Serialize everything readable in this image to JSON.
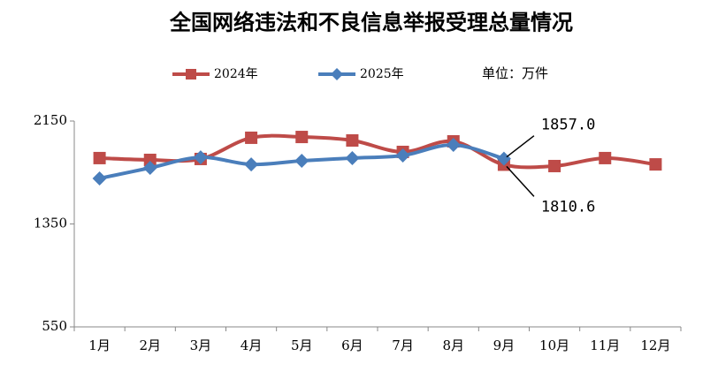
{
  "chart_data": {
    "type": "line",
    "title": "全国网络违法和不良信息举报受理总量情况",
    "unit_label": "单位：万件",
    "categories": [
      "1月",
      "2月",
      "3月",
      "4月",
      "5月",
      "6月",
      "7月",
      "8月",
      "9月",
      "10月",
      "11月",
      "12月"
    ],
    "series": [
      {
        "name": "2024年",
        "color": "#be4b48",
        "marker": "square",
        "values": [
          1862,
          1848,
          1855,
          2020,
          2026,
          1999,
          1910,
          1992,
          1810.6,
          1800,
          1862,
          1813
        ],
        "value_labels": [
          null,
          null,
          null,
          null,
          null,
          null,
          null,
          null,
          "1810.6",
          null,
          null,
          null
        ]
      },
      {
        "name": "2025年",
        "color": "#4a7ebb",
        "marker": "diamond",
        "values": [
          1704,
          1786,
          1868,
          1813,
          1841,
          1862,
          1882,
          1965,
          1857.0,
          null,
          null,
          null
        ],
        "value_labels": [
          null,
          null,
          null,
          null,
          null,
          null,
          null,
          null,
          "1857.0",
          null,
          null,
          null
        ]
      }
    ],
    "ylim": [
      550,
      2150
    ],
    "yticks": [
      550,
      1350,
      2150
    ],
    "grid": false
  }
}
